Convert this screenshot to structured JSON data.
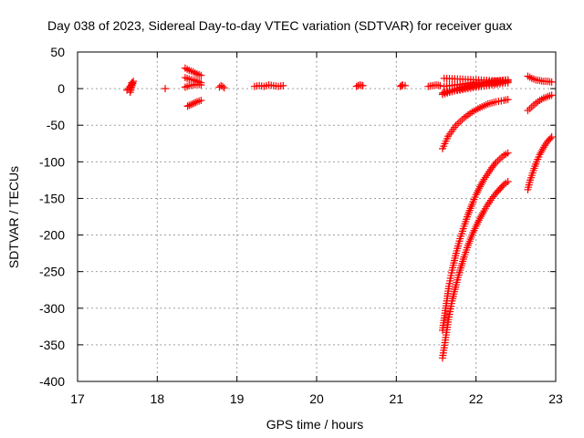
{
  "chart_data": {
    "type": "scatter",
    "title": "Day 038 of 2023, Sidereal Day-to-day VTEC variation (SDTVAR) for receiver guax",
    "xlabel": "GPS time / hours",
    "ylabel": "SDTVAR / TECUs",
    "xlim": [
      17,
      23
    ],
    "ylim": [
      -400,
      50
    ],
    "grid": true,
    "x_ticks": [
      "17",
      "18",
      "19",
      "20",
      "21",
      "22",
      "23"
    ],
    "y_ticks": [
      "50",
      "0",
      "-50",
      "-100",
      "-150",
      "-200",
      "-250",
      "-300",
      "-350",
      "-400"
    ],
    "marker": "+",
    "series_color": "#ff0000",
    "series": [
      {
        "name": "segment-a",
        "x": [
          17.62,
          17.64,
          17.66,
          17.68,
          17.7,
          17.66,
          17.68
        ],
        "y": [
          -2,
          0,
          3,
          6,
          10,
          -5,
          8
        ]
      },
      {
        "name": "segment-b",
        "x": [
          18.1
        ],
        "y": [
          0
        ]
      },
      {
        "name": "segment-c",
        "x": [
          18.35,
          18.4,
          18.45,
          18.5,
          18.55
        ],
        "y": [
          28,
          25,
          23,
          20,
          18
        ]
      },
      {
        "name": "segment-d",
        "x": [
          18.35,
          18.4,
          18.45,
          18.5,
          18.55
        ],
        "y": [
          15,
          13,
          12,
          10,
          8
        ]
      },
      {
        "name": "segment-e",
        "x": [
          18.35,
          18.4,
          18.45,
          18.5,
          18.55
        ],
        "y": [
          2,
          4,
          5,
          6,
          5
        ]
      },
      {
        "name": "segment-f",
        "x": [
          18.38,
          18.42,
          18.46,
          18.5,
          18.55
        ],
        "y": [
          -24,
          -22,
          -20,
          -18,
          -16
        ]
      },
      {
        "name": "segment-g",
        "x": [
          18.78,
          18.8,
          18.82,
          18.84
        ],
        "y": [
          2,
          4,
          3,
          1
        ]
      },
      {
        "name": "segment-h",
        "x": [
          19.22,
          19.28,
          19.34,
          19.4,
          19.46,
          19.52,
          19.58
        ],
        "y": [
          3,
          4,
          3,
          5,
          4,
          3,
          4
        ]
      },
      {
        "name": "segment-i",
        "x": [
          20.5,
          20.54,
          20.58
        ],
        "y": [
          3,
          5,
          4
        ]
      },
      {
        "name": "segment-j",
        "x": [
          21.05,
          21.08,
          21.11
        ],
        "y": [
          3,
          5,
          4
        ]
      },
      {
        "name": "segment-k",
        "x": [
          21.4,
          21.45,
          21.5,
          21.55
        ],
        "y": [
          3,
          4,
          5,
          4
        ]
      },
      {
        "name": "segment-l",
        "x": [
          21.6,
          21.8,
          22.0,
          22.2,
          22.4
        ],
        "y": [
          14,
          13,
          12,
          11,
          10
        ]
      },
      {
        "name": "segment-m",
        "x": [
          21.6,
          21.8,
          22.0,
          22.2,
          22.4
        ],
        "y": [
          3,
          6,
          8,
          10,
          12
        ]
      },
      {
        "name": "segment-n",
        "x": [
          21.6,
          21.8,
          22.0,
          22.2,
          22.4
        ],
        "y": [
          -5,
          -2,
          2,
          5,
          8
        ]
      },
      {
        "name": "segment-o",
        "x": [
          21.58,
          21.7,
          21.82,
          21.95,
          22.1,
          22.25,
          22.4
        ],
        "y": [
          -6,
          -2,
          2,
          5,
          8,
          10,
          12
        ]
      },
      {
        "name": "segment-p",
        "x": [
          21.58,
          21.7,
          21.82,
          21.95,
          22.1,
          22.25,
          22.4
        ],
        "y": [
          -8,
          -4,
          0,
          3,
          6,
          8,
          10
        ]
      },
      {
        "name": "segment-q",
        "x": [
          21.58,
          21.65,
          21.75,
          21.85,
          21.95,
          22.05,
          22.15,
          22.25,
          22.35,
          22.4
        ],
        "y": [
          -82,
          -65,
          -50,
          -40,
          -32,
          -26,
          -21,
          -18,
          -16,
          -15
        ]
      },
      {
        "name": "segment-r",
        "x": [
          21.58,
          21.62,
          21.66,
          21.7,
          21.75,
          21.8,
          21.85,
          21.9,
          21.95,
          22.0,
          22.05,
          22.1,
          22.15,
          22.2,
          22.25,
          22.3,
          22.35,
          22.4
        ],
        "y": [
          -330,
          -300,
          -270,
          -248,
          -225,
          -205,
          -188,
          -172,
          -158,
          -145,
          -134,
          -124,
          -116,
          -108,
          -101,
          -96,
          -91,
          -88
        ]
      },
      {
        "name": "segment-s",
        "x": [
          21.58,
          21.62,
          21.66,
          21.7,
          21.75,
          21.8,
          21.85,
          21.9,
          21.95,
          22.0,
          22.05,
          22.1,
          22.15,
          22.2,
          22.25,
          22.3,
          22.35,
          22.4
        ],
        "y": [
          -368,
          -340,
          -312,
          -290,
          -268,
          -248,
          -230,
          -214,
          -200,
          -188,
          -177,
          -167,
          -158,
          -150,
          -143,
          -137,
          -131,
          -127
        ]
      },
      {
        "name": "segment-t",
        "x": [
          22.65,
          22.7,
          22.75,
          22.8,
          22.85,
          22.9,
          22.95
        ],
        "y": [
          17,
          14,
          12,
          11,
          10,
          10,
          9
        ]
      },
      {
        "name": "segment-u",
        "x": [
          22.65,
          22.7,
          22.75,
          22.8,
          22.85,
          22.9,
          22.95
        ],
        "y": [
          -30,
          -25,
          -20,
          -16,
          -13,
          -11,
          -9
        ]
      },
      {
        "name": "segment-v",
        "x": [
          22.65,
          22.68,
          22.72,
          22.76,
          22.8,
          22.85,
          22.9,
          22.95
        ],
        "y": [
          -138,
          -125,
          -112,
          -100,
          -90,
          -80,
          -72,
          -66
        ]
      }
    ]
  }
}
